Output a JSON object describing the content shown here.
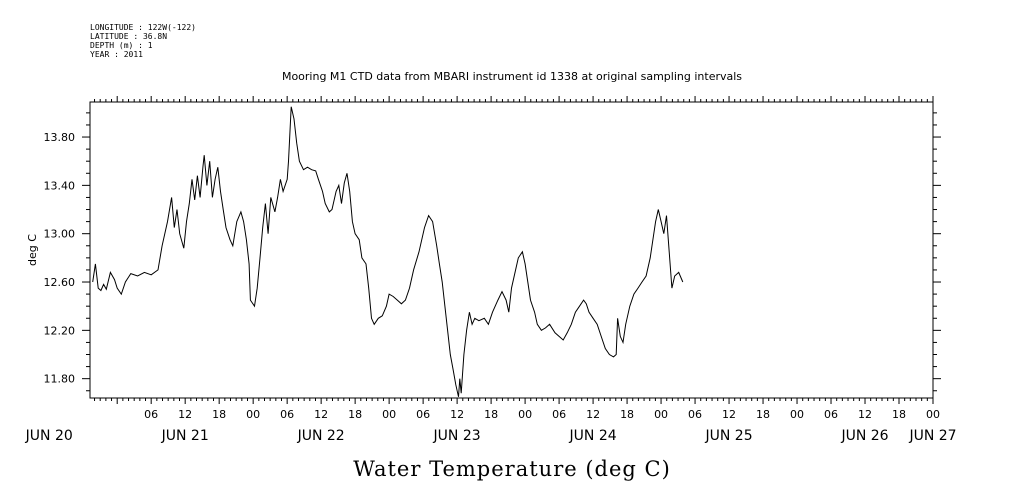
{
  "header": {
    "lines": [
      "LONGITUDE : 122W(-122)",
      "LATITUDE : 36.8N",
      "DEPTH (m) : 1",
      "YEAR : 2011"
    ]
  },
  "chart_data": {
    "type": "line",
    "title": "Mooring M1 CTD data from MBARI instrument id 1338 at original sampling intervals",
    "xlabel": "Water Temperature (deg C)",
    "ylabel": "deg C",
    "ylim": [
      11.64,
      14.09
    ],
    "yticks": [
      "13.80",
      "13.40",
      "13.00",
      "12.60",
      "12.20",
      "11.80"
    ],
    "ytick_values": [
      13.8,
      13.4,
      13.0,
      12.6,
      12.2,
      11.8
    ],
    "xlim": [
      1.8,
      8.0
    ],
    "xaxis_note": "x values are time in days from JUN 19 00:00, 2011",
    "hour_ticks": [
      {
        "x": 2.25,
        "label": "06"
      },
      {
        "x": 2.5,
        "label": "12"
      },
      {
        "x": 2.75,
        "label": "18"
      },
      {
        "x": 3.0,
        "label": "00"
      },
      {
        "x": 3.25,
        "label": "06"
      },
      {
        "x": 3.5,
        "label": "12"
      },
      {
        "x": 3.75,
        "label": "18"
      },
      {
        "x": 4.0,
        "label": "00"
      },
      {
        "x": 4.25,
        "label": "06"
      },
      {
        "x": 4.5,
        "label": "12"
      },
      {
        "x": 4.75,
        "label": "18"
      },
      {
        "x": 5.0,
        "label": "00"
      },
      {
        "x": 5.25,
        "label": "06"
      },
      {
        "x": 5.5,
        "label": "12"
      },
      {
        "x": 5.75,
        "label": "18"
      },
      {
        "x": 6.0,
        "label": "00"
      },
      {
        "x": 6.25,
        "label": "06"
      },
      {
        "x": 6.5,
        "label": "12"
      },
      {
        "x": 6.75,
        "label": "18"
      },
      {
        "x": 7.0,
        "label": "00"
      },
      {
        "x": 7.25,
        "label": "06"
      },
      {
        "x": 7.5,
        "label": "12"
      },
      {
        "x": 7.75,
        "label": "18"
      },
      {
        "x": 8.0,
        "label": "00"
      }
    ],
    "day_labels": [
      {
        "x": 1.5,
        "label": "JUN 20"
      },
      {
        "x": 2.5,
        "label": "JUN 21"
      },
      {
        "x": 3.5,
        "label": "JUN 22"
      },
      {
        "x": 4.5,
        "label": "JUN 23"
      },
      {
        "x": 5.5,
        "label": "JUN 24"
      },
      {
        "x": 6.5,
        "label": "JUN 25"
      },
      {
        "x": 7.5,
        "label": "JUN 26"
      },
      {
        "x": 8.0,
        "label": "JUN 27"
      }
    ],
    "series": [
      {
        "values": [
          [
            1.82,
            12.6
          ],
          [
            1.84,
            12.75
          ],
          [
            1.86,
            12.55
          ],
          [
            1.88,
            12.53
          ],
          [
            1.9,
            12.58
          ],
          [
            1.92,
            12.54
          ],
          [
            1.95,
            12.68
          ],
          [
            1.98,
            12.62
          ],
          [
            2.0,
            12.55
          ],
          [
            2.03,
            12.5
          ],
          [
            2.06,
            12.6
          ],
          [
            2.1,
            12.67
          ],
          [
            2.15,
            12.65
          ],
          [
            2.2,
            12.68
          ],
          [
            2.25,
            12.66
          ],
          [
            2.3,
            12.7
          ],
          [
            2.33,
            12.9
          ],
          [
            2.37,
            13.1
          ],
          [
            2.4,
            13.3
          ],
          [
            2.42,
            13.05
          ],
          [
            2.44,
            13.2
          ],
          [
            2.46,
            13.0
          ],
          [
            2.49,
            12.88
          ],
          [
            2.51,
            13.1
          ],
          [
            2.53,
            13.25
          ],
          [
            2.55,
            13.45
          ],
          [
            2.57,
            13.28
          ],
          [
            2.59,
            13.48
          ],
          [
            2.61,
            13.3
          ],
          [
            2.63,
            13.55
          ],
          [
            2.64,
            13.65
          ],
          [
            2.66,
            13.4
          ],
          [
            2.68,
            13.6
          ],
          [
            2.7,
            13.3
          ],
          [
            2.72,
            13.45
          ],
          [
            2.74,
            13.55
          ],
          [
            2.76,
            13.35
          ],
          [
            2.78,
            13.2
          ],
          [
            2.8,
            13.05
          ],
          [
            2.83,
            12.95
          ],
          [
            2.85,
            12.9
          ],
          [
            2.88,
            13.1
          ],
          [
            2.91,
            13.18
          ],
          [
            2.93,
            13.1
          ],
          [
            2.95,
            12.95
          ],
          [
            2.97,
            12.75
          ],
          [
            2.98,
            12.45
          ],
          [
            3.01,
            12.4
          ],
          [
            3.03,
            12.55
          ],
          [
            3.05,
            12.8
          ],
          [
            3.07,
            13.05
          ],
          [
            3.09,
            13.25
          ],
          [
            3.11,
            13.0
          ],
          [
            3.13,
            13.3
          ],
          [
            3.16,
            13.18
          ],
          [
            3.18,
            13.3
          ],
          [
            3.2,
            13.45
          ],
          [
            3.22,
            13.35
          ],
          [
            3.25,
            13.45
          ],
          [
            3.26,
            13.6
          ],
          [
            3.28,
            14.05
          ],
          [
            3.3,
            13.95
          ],
          [
            3.32,
            13.75
          ],
          [
            3.34,
            13.6
          ],
          [
            3.37,
            13.53
          ],
          [
            3.4,
            13.55
          ],
          [
            3.43,
            13.53
          ],
          [
            3.46,
            13.52
          ],
          [
            3.48,
            13.45
          ],
          [
            3.51,
            13.35
          ],
          [
            3.53,
            13.25
          ],
          [
            3.56,
            13.18
          ],
          [
            3.58,
            13.2
          ],
          [
            3.61,
            13.35
          ],
          [
            3.63,
            13.4
          ],
          [
            3.65,
            13.25
          ],
          [
            3.67,
            13.42
          ],
          [
            3.69,
            13.5
          ],
          [
            3.71,
            13.35
          ],
          [
            3.73,
            13.1
          ],
          [
            3.75,
            13.0
          ],
          [
            3.78,
            12.95
          ],
          [
            3.8,
            12.8
          ],
          [
            3.83,
            12.75
          ],
          [
            3.85,
            12.55
          ],
          [
            3.87,
            12.3
          ],
          [
            3.89,
            12.25
          ],
          [
            3.92,
            12.3
          ],
          [
            3.95,
            12.32
          ],
          [
            3.98,
            12.4
          ],
          [
            4.0,
            12.5
          ],
          [
            4.03,
            12.48
          ],
          [
            4.06,
            12.45
          ],
          [
            4.09,
            12.42
          ],
          [
            4.12,
            12.45
          ],
          [
            4.15,
            12.55
          ],
          [
            4.18,
            12.7
          ],
          [
            4.22,
            12.85
          ],
          [
            4.26,
            13.05
          ],
          [
            4.29,
            13.15
          ],
          [
            4.32,
            13.1
          ],
          [
            4.35,
            12.9
          ],
          [
            4.37,
            12.75
          ],
          [
            4.39,
            12.6
          ],
          [
            4.41,
            12.4
          ],
          [
            4.43,
            12.2
          ],
          [
            4.45,
            12.0
          ],
          [
            4.47,
            11.88
          ],
          [
            4.49,
            11.75
          ],
          [
            4.51,
            11.65
          ],
          [
            4.52,
            11.8
          ],
          [
            4.53,
            11.68
          ],
          [
            4.55,
            12.0
          ],
          [
            4.57,
            12.2
          ],
          [
            4.59,
            12.35
          ],
          [
            4.61,
            12.25
          ],
          [
            4.63,
            12.3
          ],
          [
            4.66,
            12.28
          ],
          [
            4.7,
            12.3
          ],
          [
            4.73,
            12.25
          ],
          [
            4.76,
            12.35
          ],
          [
            4.8,
            12.45
          ],
          [
            4.83,
            12.52
          ],
          [
            4.86,
            12.45
          ],
          [
            4.88,
            12.35
          ],
          [
            4.9,
            12.55
          ],
          [
            4.93,
            12.7
          ],
          [
            4.95,
            12.8
          ],
          [
            4.98,
            12.85
          ],
          [
            5.0,
            12.75
          ],
          [
            5.02,
            12.6
          ],
          [
            5.04,
            12.45
          ],
          [
            5.07,
            12.35
          ],
          [
            5.09,
            12.25
          ],
          [
            5.12,
            12.2
          ],
          [
            5.15,
            12.22
          ],
          [
            5.18,
            12.25
          ],
          [
            5.22,
            12.18
          ],
          [
            5.25,
            12.15
          ],
          [
            5.28,
            12.12
          ],
          [
            5.31,
            12.18
          ],
          [
            5.34,
            12.25
          ],
          [
            5.37,
            12.35
          ],
          [
            5.4,
            12.4
          ],
          [
            5.43,
            12.45
          ],
          [
            5.45,
            12.42
          ],
          [
            5.47,
            12.35
          ],
          [
            5.5,
            12.3
          ],
          [
            5.53,
            12.25
          ],
          [
            5.56,
            12.15
          ],
          [
            5.59,
            12.05
          ],
          [
            5.62,
            12.0
          ],
          [
            5.65,
            11.98
          ],
          [
            5.67,
            12.0
          ],
          [
            5.68,
            12.3
          ],
          [
            5.7,
            12.15
          ],
          [
            5.72,
            12.1
          ],
          [
            5.74,
            12.25
          ],
          [
            5.77,
            12.4
          ],
          [
            5.8,
            12.5
          ],
          [
            5.83,
            12.55
          ],
          [
            5.86,
            12.6
          ],
          [
            5.89,
            12.65
          ],
          [
            5.92,
            12.8
          ],
          [
            5.94,
            12.95
          ],
          [
            5.96,
            13.1
          ],
          [
            5.98,
            13.2
          ],
          [
            6.0,
            13.1
          ],
          [
            6.02,
            13.0
          ],
          [
            6.04,
            13.15
          ],
          [
            6.06,
            12.85
          ],
          [
            6.08,
            12.55
          ],
          [
            6.1,
            12.65
          ],
          [
            6.13,
            12.68
          ],
          [
            6.16,
            12.6
          ]
        ]
      }
    ]
  }
}
